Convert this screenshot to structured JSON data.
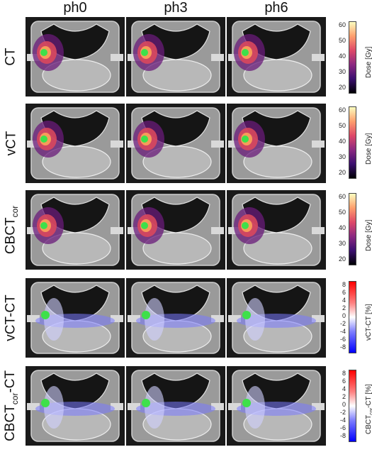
{
  "columns": [
    "ph0",
    "ph3",
    "ph6"
  ],
  "rows": [
    {
      "label": "CT",
      "label_sub": "",
      "label_suffix": "",
      "colorbar": "dose"
    },
    {
      "label": "vCT",
      "label_sub": "",
      "label_suffix": "",
      "colorbar": "dose"
    },
    {
      "label": "CBCT",
      "label_sub": "cor",
      "label_suffix": "",
      "colorbar": "dose"
    },
    {
      "label": "vCT-CT",
      "label_sub": "",
      "label_suffix": "",
      "colorbar": "diff"
    },
    {
      "label": "CBCT",
      "label_sub": "cor",
      "label_suffix": "-CT",
      "colorbar": "diff"
    }
  ],
  "colorbars": {
    "dose": {
      "title": "Dose [Gy]",
      "ticks": [
        "60",
        "50",
        "40",
        "30",
        "20"
      ]
    },
    "diff_vct": {
      "title": "vCT-CT [%]",
      "ticks": [
        "8",
        "6",
        "4",
        "2",
        "0",
        "-2",
        "-4",
        "-6",
        "-8"
      ]
    },
    "diff_cbct": {
      "title_main": "CBCT",
      "title_sub": "cor",
      "title_suffix": "-CT [%]",
      "ticks": [
        "8",
        "6",
        "4",
        "2",
        "0",
        "-2",
        "-4",
        "-6",
        "-8"
      ]
    }
  },
  "colors": {
    "panel_bg": "#1a1a1a",
    "phantom": "#8c8c8c",
    "dose_core": "#3ee04a"
  }
}
